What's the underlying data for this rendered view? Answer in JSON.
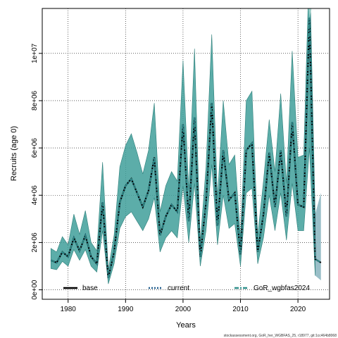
{
  "chart_data": {
    "type": "line",
    "xlabel": "Years",
    "ylabel": "Recruits (age 0)",
    "xlim": [
      1975.5,
      2025.5
    ],
    "ylim": [
      -400000,
      11900000
    ],
    "x_ticks": [
      1980,
      1990,
      2000,
      2010,
      2020
    ],
    "x_tick_labels": [
      "1980",
      "1990",
      "2000",
      "2010",
      "2020"
    ],
    "y_ticks": [
      0,
      2000000,
      4000000,
      6000000,
      8000000,
      10000000
    ],
    "y_tick_labels": [
      "0e+00",
      "2e+06",
      "4e+06",
      "6e+06",
      "8e+06",
      "1e+07"
    ],
    "grid": true,
    "legend_position": "bottom",
    "colors": {
      "band": "#3f9f9a",
      "band_edge": "#2e7f7a",
      "band_tail": "#8fb8c2",
      "band_highlight": "#b5dcd6",
      "base": "#000000",
      "current": "#1f5c8c",
      "gor": "#2f8f8a"
    },
    "x": [
      1977,
      1978,
      1979,
      1980,
      1981,
      1982,
      1983,
      1984,
      1985,
      1986,
      1987,
      1988,
      1989,
      1990,
      1991,
      1992,
      1993,
      1994,
      1995,
      1996,
      1997,
      1998,
      1999,
      2000,
      2001,
      2002,
      2003,
      2004,
      2005,
      2006,
      2007,
      2008,
      2009,
      2010,
      2011,
      2012,
      2013,
      2014,
      2015,
      2016,
      2017,
      2018,
      2019,
      2020,
      2021,
      2022,
      2023,
      2024
    ],
    "series": [
      {
        "name": "base",
        "style": "solid",
        "values": [
          1250000,
          1150000,
          1600000,
          1400000,
          2200000,
          1650000,
          2300000,
          1400000,
          1100000,
          3700000,
          500000,
          1600000,
          3700000,
          4400000,
          4700000,
          4100000,
          3500000,
          4200000,
          5600000,
          2300000,
          3100000,
          3600000,
          3300000,
          7000000,
          2900000,
          7300000,
          1400000,
          3700000,
          7900000,
          2700000,
          5900000,
          3800000,
          4100000,
          1500000,
          5900000,
          6200000,
          1600000,
          3200000,
          5800000,
          3500000,
          5900000,
          3100000,
          7100000,
          3600000,
          3500000,
          11500000,
          1300000,
          1150000
        ]
      },
      {
        "name": "current",
        "style": "dotted",
        "values": [
          1250000,
          1150000,
          1600000,
          1400000,
          2200000,
          1650000,
          2300000,
          1400000,
          1100000,
          3700000,
          500000,
          1600000,
          3700000,
          4400000,
          4700000,
          4100000,
          3500000,
          4200000,
          5600000,
          2300000,
          3100000,
          3600000,
          3300000,
          7000000,
          2900000,
          7300000,
          1400000,
          3700000,
          7900000,
          2700000,
          5900000,
          3800000,
          4100000,
          1500000,
          5900000,
          6200000,
          1600000,
          3200000,
          5800000,
          3500000,
          5900000,
          3100000,
          7100000,
          3600000,
          3500000,
          11500000,
          1300000,
          1150000
        ]
      },
      {
        "name": "GoR_wgbfas2024",
        "style": "dash-dot",
        "values": [
          1250000,
          1150000,
          1600000,
          1400000,
          2200000,
          1650000,
          2300000,
          1400000,
          1100000,
          3700000,
          500000,
          1600000,
          3700000,
          4400000,
          4700000,
          4100000,
          3500000,
          4200000,
          5600000,
          2300000,
          3100000,
          3600000,
          3300000,
          7000000,
          2900000,
          7300000,
          1400000,
          3700000,
          7900000,
          2700000,
          5900000,
          3800000,
          4100000,
          1500000,
          5900000,
          6200000,
          1600000,
          3200000,
          5800000,
          3500000,
          5900000,
          3100000,
          7100000,
          3600000,
          3500000,
          11500000,
          1300000,
          1150000
        ]
      }
    ],
    "confidence_band": {
      "lower": [
        900000,
        850000,
        1200000,
        1000000,
        1700000,
        1250000,
        1700000,
        1000000,
        750000,
        2500000,
        250000,
        1100000,
        2600000,
        3100000,
        3300000,
        2900000,
        2500000,
        3000000,
        3900000,
        1600000,
        2200000,
        2500000,
        2200000,
        4400000,
        2000000,
        4500000,
        1000000,
        2500000,
        5300000,
        1900000,
        4000000,
        2600000,
        2800000,
        1000000,
        4100000,
        4300000,
        1100000,
        2200000,
        4000000,
        2500000,
        4100000,
        2100000,
        4500000,
        2500000,
        2500000,
        6000000,
        600000,
        400000
      ],
      "upper": [
        1750000,
        1600000,
        2250000,
        1900000,
        3200000,
        2350000,
        3350000,
        2000000,
        1650000,
        5400000,
        850000,
        2300000,
        5200000,
        6100000,
        6600000,
        5800000,
        4900000,
        5900000,
        7900000,
        3300000,
        4400000,
        5000000,
        4600000,
        9700000,
        4200000,
        10200000,
        2000000,
        5200000,
        10800000,
        3900000,
        8000000,
        5300000,
        5700000,
        2200000,
        8000000,
        8400000,
        2300000,
        4600000,
        7200000,
        5000000,
        8300000,
        4500000,
        10100000,
        5600000,
        5700000,
        14000000,
        3200000,
        4100000
      ]
    }
  },
  "legend": {
    "base": "base",
    "current": "current",
    "gor": "GoR_wgbfas2024"
  },
  "footer": "stockassessment.org, GoR_her_WGBFAS_25, r18977, git:1cc464b8068"
}
